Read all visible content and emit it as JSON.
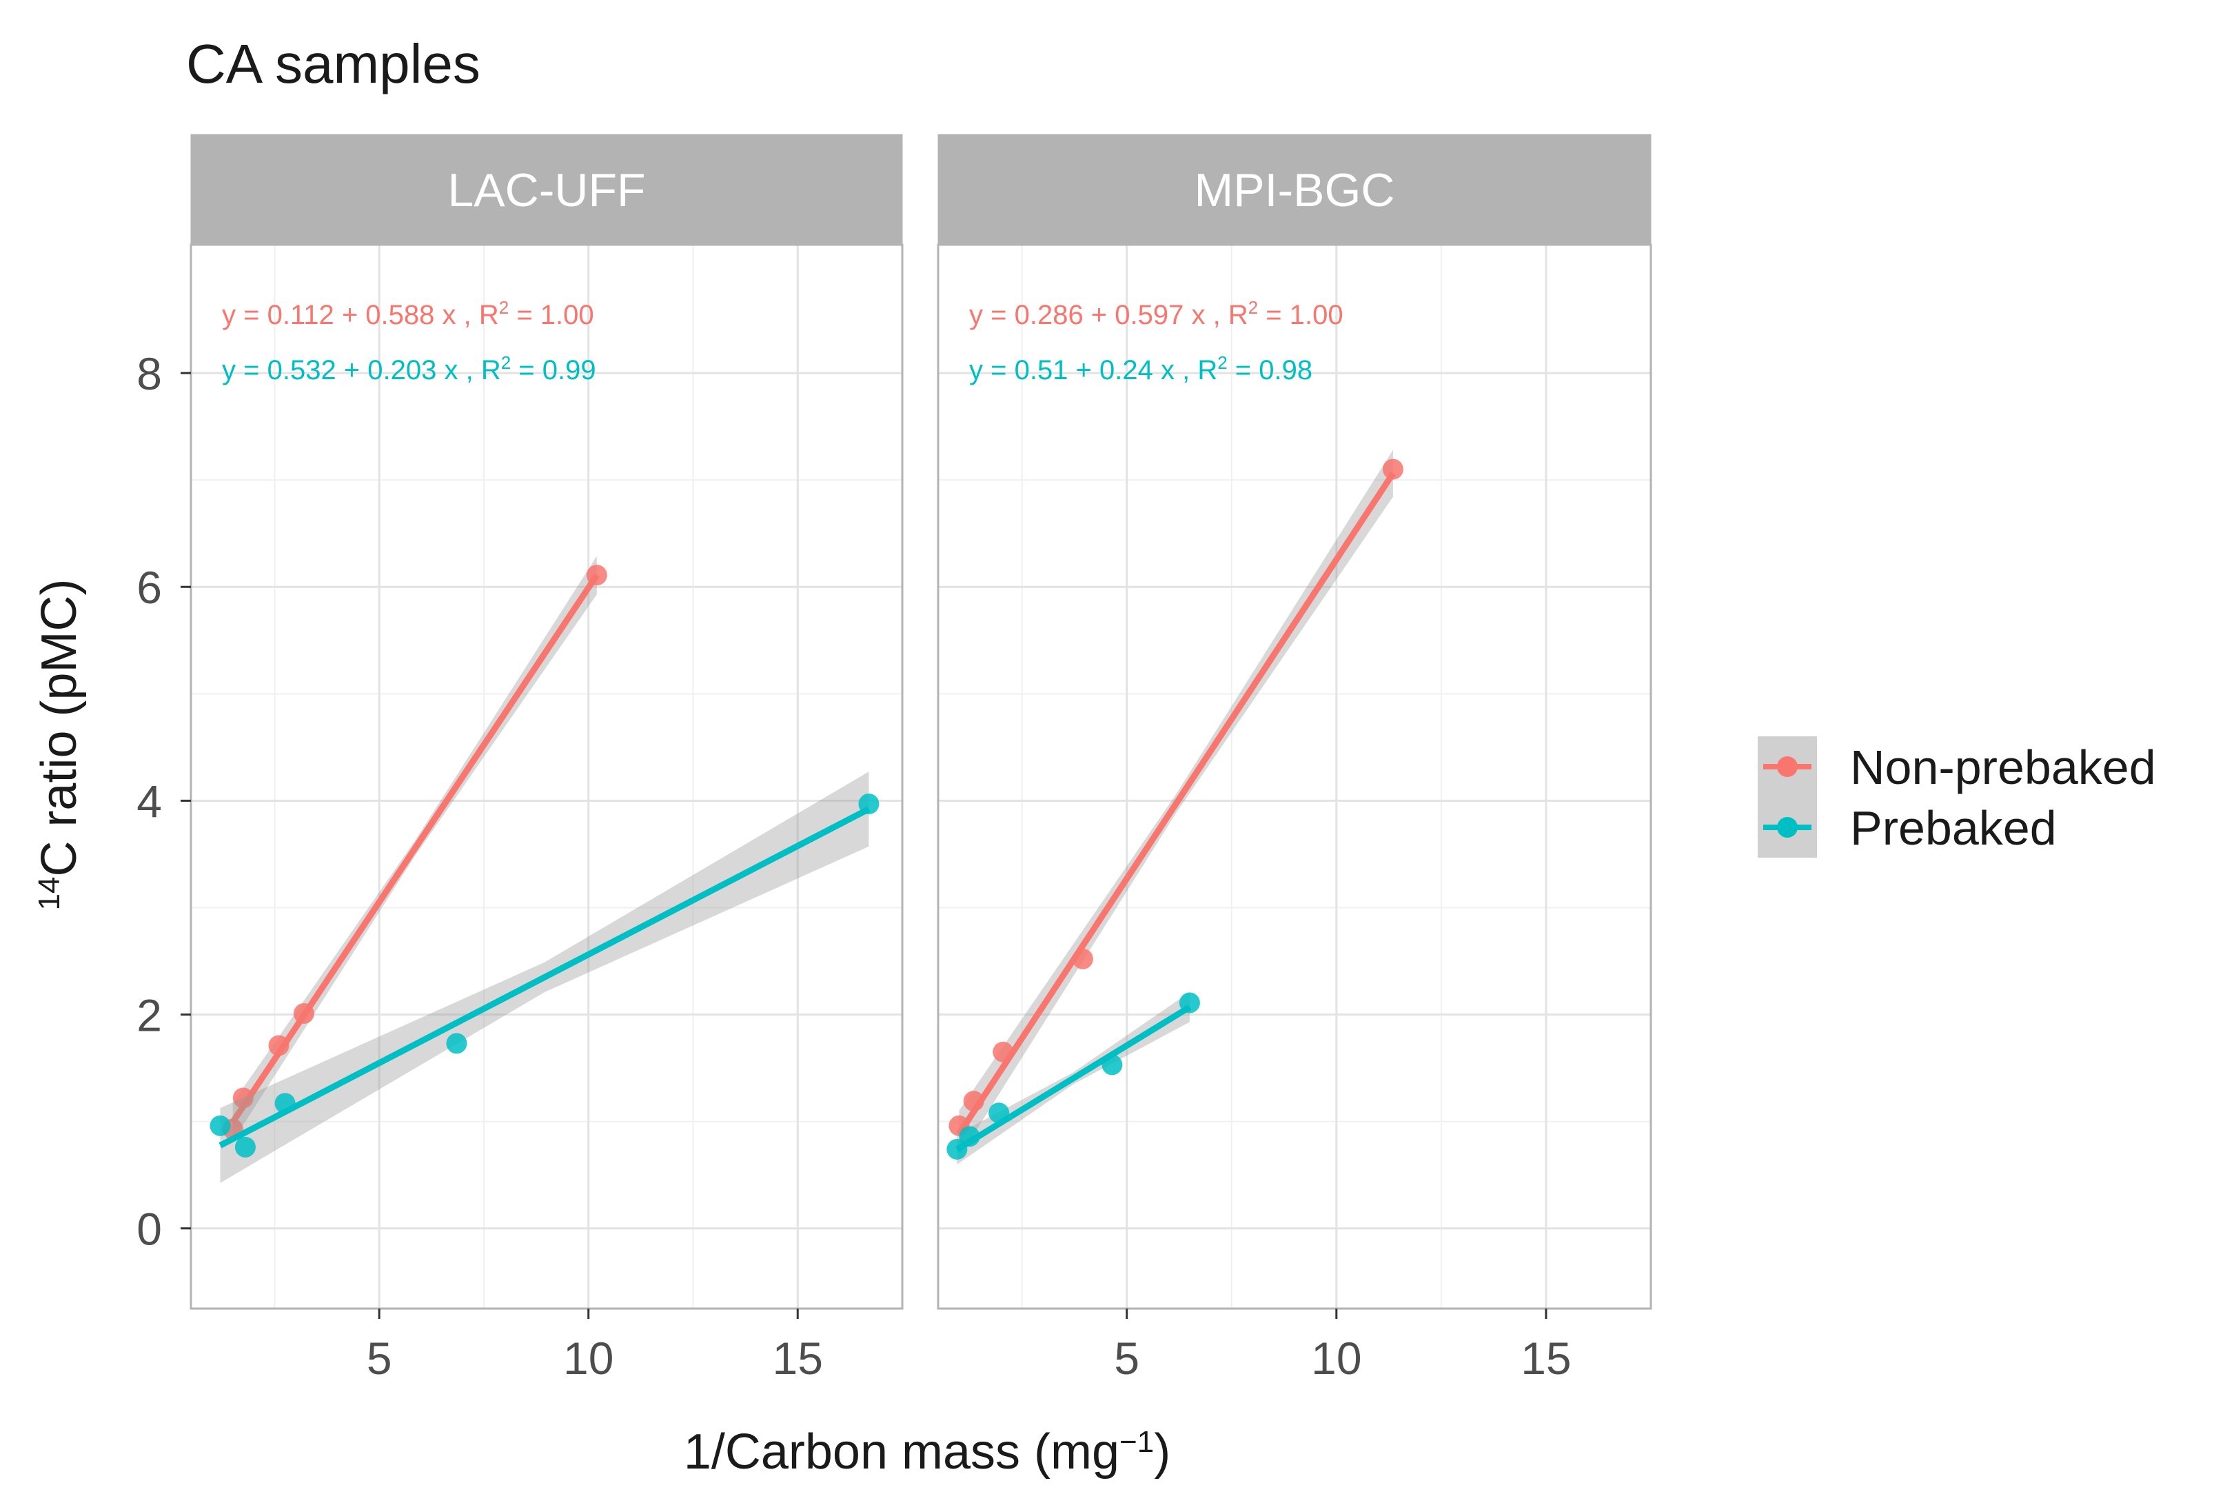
{
  "chart_data": {
    "type": "scatter",
    "title": "CA samples",
    "xlabel": {
      "base": "1/Carbon mass (mg",
      "sup": "−1",
      "end": ")"
    },
    "ylabel": {
      "sup": "14",
      "base": "C  ratio (pMC)"
    },
    "xlim": [
      0.5,
      17.5
    ],
    "ylim": [
      -0.75,
      9.2
    ],
    "x_ticks": [
      5,
      10,
      15
    ],
    "y_ticks": [
      0,
      2,
      4,
      6,
      8
    ],
    "grid": true,
    "legend_placement": "right",
    "colors": {
      "Non-prebaked": "#F8766D",
      "Prebaked": "#00BFC4"
    },
    "legend": [
      "Non-prebaked",
      "Prebaked"
    ],
    "panels": [
      {
        "strip": "LAC-UFF",
        "series": [
          {
            "name": "Non-prebaked",
            "points": [
              [
                1.5,
                0.93
              ],
              [
                1.75,
                1.22
              ],
              [
                2.6,
                1.71
              ],
              [
                3.2,
                2.01
              ],
              [
                10.2,
                6.11
              ]
            ],
            "fit": {
              "intercept": 0.112,
              "slope": 0.588,
              "x_range": [
                1.5,
                10.2
              ],
              "se_ends": 0.18
            },
            "equation": {
              "pre": "y = 0.112 + 0.588 x , R",
              "sup": "2",
              "post": " = 1.00"
            }
          },
          {
            "name": "Prebaked",
            "points": [
              [
                1.2,
                0.96
              ],
              [
                1.8,
                0.76
              ],
              [
                2.75,
                1.17
              ],
              [
                6.85,
                1.73
              ],
              [
                16.7,
                3.97
              ]
            ],
            "fit": {
              "intercept": 0.532,
              "slope": 0.203,
              "x_range": [
                1.2,
                16.7
              ],
              "se_ends": 0.35
            },
            "equation": {
              "pre": "y = 0.532 + 0.203 x , R",
              "sup": "2",
              "post": " = 0.99"
            }
          }
        ]
      },
      {
        "strip": "MPI-BGC",
        "series": [
          {
            "name": "Non-prebaked",
            "points": [
              [
                1.0,
                0.96
              ],
              [
                1.35,
                1.19
              ],
              [
                2.05,
                1.65
              ],
              [
                3.95,
                2.52
              ],
              [
                11.35,
                7.1
              ]
            ],
            "fit": {
              "intercept": 0.286,
              "slope": 0.597,
              "x_range": [
                1.0,
                11.35
              ],
              "se_ends": 0.22
            },
            "equation": {
              "pre": "y = 0.286 + 0.597 x , R",
              "sup": "2",
              "post": " = 1.00"
            }
          },
          {
            "name": "Prebaked",
            "points": [
              [
                0.95,
                0.74
              ],
              [
                1.25,
                0.86
              ],
              [
                1.95,
                1.08
              ],
              [
                4.65,
                1.53
              ],
              [
                6.5,
                2.11
              ]
            ],
            "fit": {
              "intercept": 0.51,
              "slope": 0.24,
              "x_range": [
                0.95,
                6.5
              ],
              "se_ends": 0.14
            },
            "equation": {
              "pre": "y = 0.51 + 0.24 x , R",
              "sup": "2",
              "post": " = 0.98"
            }
          }
        ]
      }
    ]
  }
}
